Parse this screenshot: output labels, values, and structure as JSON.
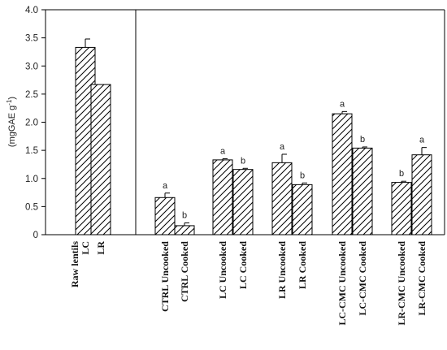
{
  "chart_data": {
    "type": "bar",
    "ylabel": "(mgGAE  g",
    "ylabel_sup": "-1",
    "ylabel_close": ")",
    "ylim": [
      0,
      4.0
    ],
    "yticks": [
      "0",
      "0.5",
      "1.0",
      "1.5",
      "2.0",
      "2.5",
      "3.0",
      "3.5",
      "4.0"
    ],
    "ytick_values": [
      0,
      0.5,
      1.0,
      1.5,
      2.0,
      2.5,
      3.0,
      3.5,
      4.0
    ],
    "grid": false,
    "bar_pattern": "diagonal-hatch",
    "bar_color": "#000000",
    "bars": [
      {
        "label": "Raw lentils",
        "value": null,
        "error": null,
        "sig": ""
      },
      {
        "label": "LC",
        "value": 3.33,
        "error": 0.15,
        "sig": ""
      },
      {
        "label": "LR",
        "value": 2.67,
        "error": 0.0,
        "sig": ""
      },
      {
        "label": "CTRL Uncooked",
        "value": 0.66,
        "error": 0.08,
        "sig": "a"
      },
      {
        "label": "CTRL Cooked",
        "value": 0.16,
        "error": 0.05,
        "sig": "b"
      },
      {
        "label": "LC Uncooked",
        "value": 1.33,
        "error": 0.02,
        "sig": "a"
      },
      {
        "label": "LC Cooked",
        "value": 1.16,
        "error": 0.02,
        "sig": "b"
      },
      {
        "label": "LR Uncooked",
        "value": 1.28,
        "error": 0.15,
        "sig": "a"
      },
      {
        "label": "LR Cooked",
        "value": 0.89,
        "error": 0.03,
        "sig": "b"
      },
      {
        "label": "LC-CMC Uncooked",
        "value": 2.15,
        "error": 0.04,
        "sig": "a"
      },
      {
        "label": "LC-CMC Cooked",
        "value": 1.54,
        "error": 0.02,
        "sig": "b"
      },
      {
        "label": "LR-CMC Uncooked",
        "value": 0.93,
        "error": 0.02,
        "sig": "b"
      },
      {
        "label": "LR-CMC Cooked",
        "value": 1.42,
        "error": 0.13,
        "sig": "a"
      }
    ]
  }
}
